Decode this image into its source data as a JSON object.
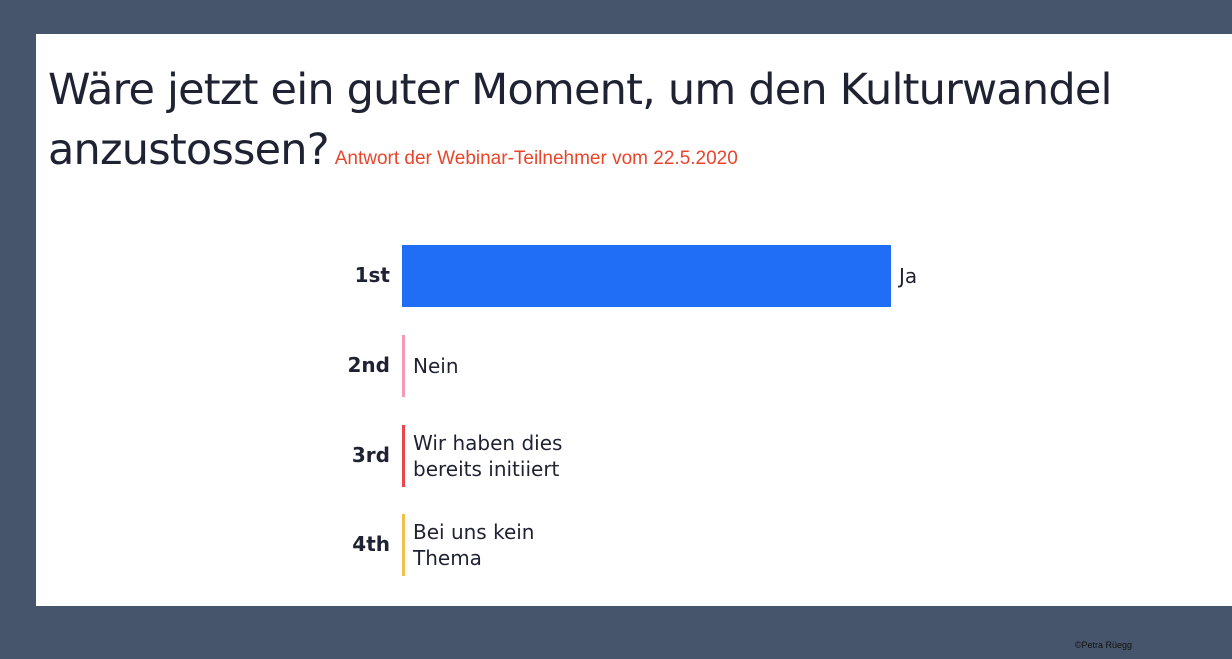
{
  "chart_data": {
    "type": "bar",
    "orientation": "horizontal",
    "title": "Wäre jetzt ein guter Moment, um den Kulturwandel anzustossen?",
    "subtitle": "Antwort der Webinar-Teilnehmer vom 22.5.2020",
    "categories": [
      "1st",
      "2nd",
      "3rd",
      "4th"
    ],
    "labels": [
      "Ja",
      "Nein",
      "Wir haben dies bereits initiiert",
      "Bei uns kein Thema"
    ],
    "values": [
      100,
      0,
      0,
      0
    ],
    "colors": [
      "#1f6ef5",
      "#f29bb5",
      "#e8454c",
      "#f2c04a"
    ]
  },
  "footer": {
    "copyright": "©Petra Rüegg"
  }
}
